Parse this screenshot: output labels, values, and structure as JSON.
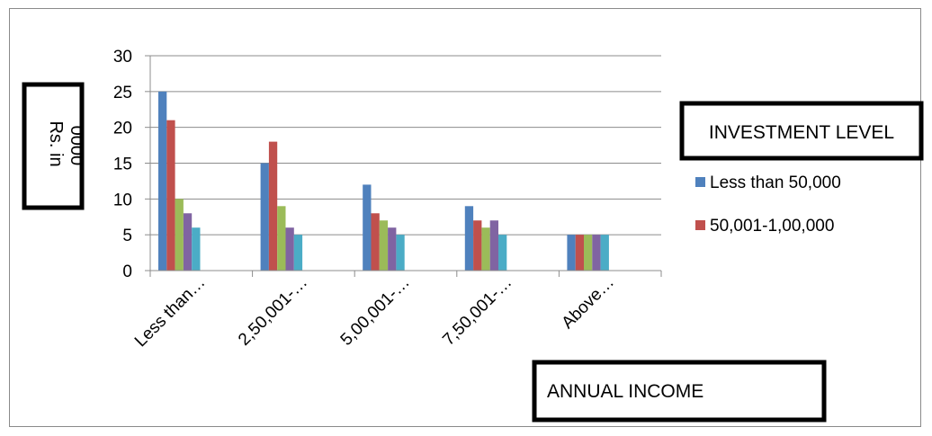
{
  "chart_data": {
    "type": "bar",
    "xlabel": "ANNUAL INCOME",
    "ylabel_lines": [
      "Rs. in",
      "'0000"
    ],
    "ylim": [
      0,
      30
    ],
    "yticks": [
      0,
      5,
      10,
      15,
      20,
      25,
      30
    ],
    "grid": true,
    "categories": [
      "Less than…",
      "2,50,001-…",
      "5,00,001-…",
      "7,50,001-…",
      "Above…"
    ],
    "legend": {
      "title": "INVESTMENT LEVEL",
      "placement": "right"
    },
    "series": [
      {
        "name": "Less than 50,000",
        "color": "#4f81bd",
        "values": [
          25,
          15,
          12,
          9,
          5
        ]
      },
      {
        "name": "50,001-1,00,000",
        "color": "#c0504d",
        "values": [
          21,
          18,
          8,
          7,
          5
        ]
      },
      {
        "color": "#9bbb59",
        "values": [
          10,
          9,
          7,
          6,
          5
        ]
      },
      {
        "color": "#8064a2",
        "values": [
          8,
          6,
          6,
          7,
          5
        ]
      },
      {
        "color": "#4bacc6",
        "values": [
          6,
          5,
          5,
          5,
          5
        ]
      }
    ]
  }
}
